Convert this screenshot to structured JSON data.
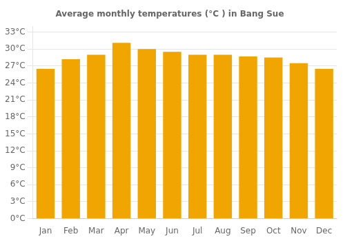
{
  "chart_data": {
    "type": "bar",
    "title": "Average monthly temperatures (°C ) in Bang Sue",
    "categories": [
      "Jan",
      "Feb",
      "Mar",
      "Apr",
      "May",
      "Jun",
      "Jul",
      "Aug",
      "Sep",
      "Oct",
      "Nov",
      "Dec"
    ],
    "values": [
      26.5,
      28.2,
      29.0,
      31.1,
      30.0,
      29.5,
      29.0,
      29.0,
      28.7,
      28.5,
      27.5,
      26.5
    ],
    "color": "#F0A500",
    "ylim": [
      0,
      34
    ],
    "yticks": [
      {
        "value": 0,
        "label": "0°C"
      },
      {
        "value": 3,
        "label": "3°C"
      },
      {
        "value": 6,
        "label": "6°C"
      },
      {
        "value": 9,
        "label": "9°C"
      },
      {
        "value": 12,
        "label": "12°C"
      },
      {
        "value": 15,
        "label": "15°C"
      },
      {
        "value": 18,
        "label": "18°C"
      },
      {
        "value": 21,
        "label": "21°C"
      },
      {
        "value": 24,
        "label": "24°C"
      },
      {
        "value": 27,
        "label": "27°C"
      },
      {
        "value": 30,
        "label": "30°C"
      },
      {
        "value": 33,
        "label": "33°C"
      }
    ],
    "grid": "y"
  }
}
